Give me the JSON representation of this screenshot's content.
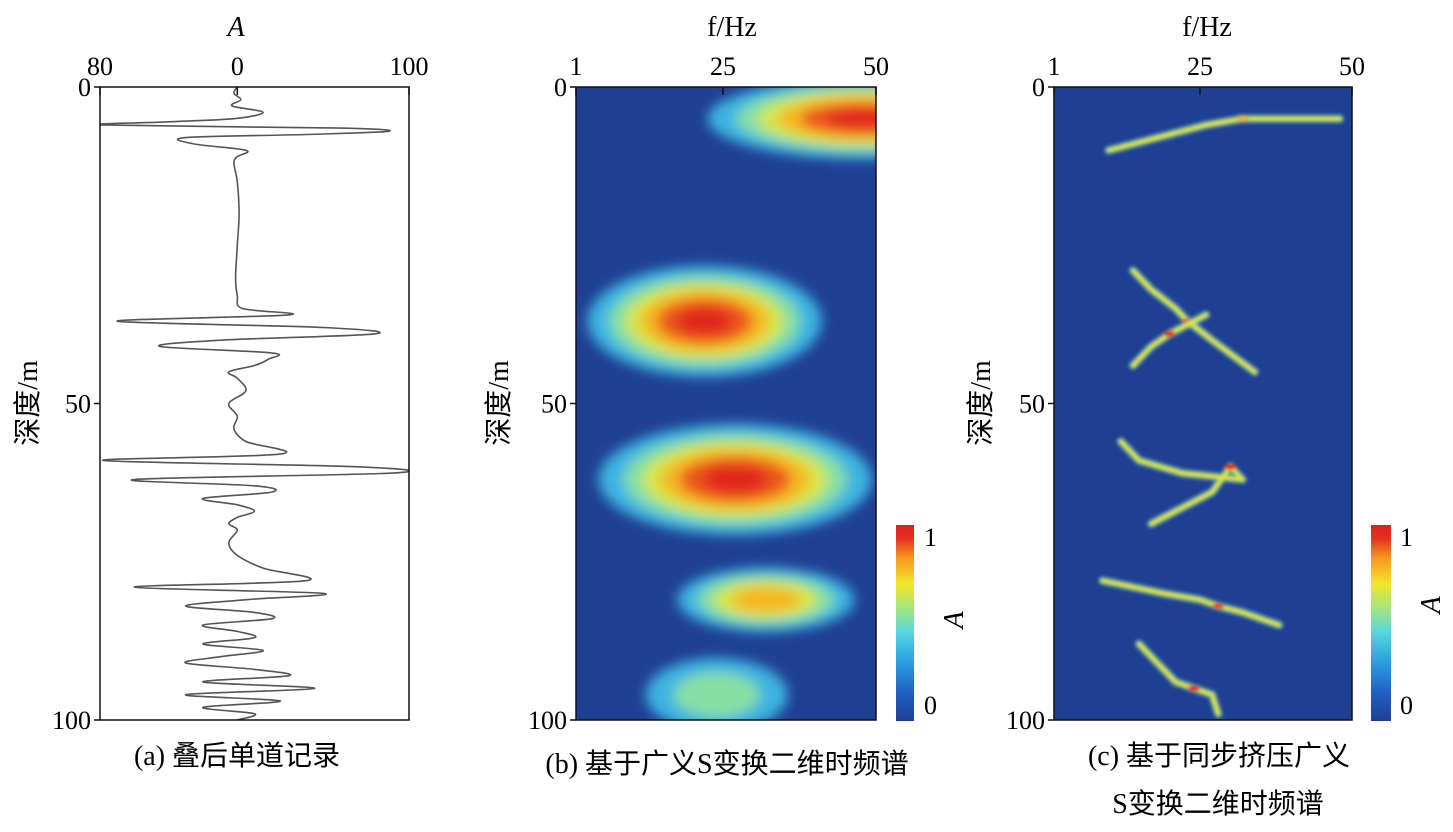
{
  "colors": {
    "axis": "#111111",
    "trace": "#555555",
    "colormap": [
      "#1f3f93",
      "#1f5fc0",
      "#2a9ee0",
      "#56d6e2",
      "#a6e67a",
      "#f2e62a",
      "#f79a1b",
      "#e23220",
      "#e11f1f"
    ]
  },
  "chart_data": [
    {
      "id": "a",
      "type": "line",
      "caption": "(a) 叠后单道记录",
      "xlabel": "A",
      "ylabel": "深度/m",
      "xlim": [
        -80,
        100
      ],
      "ylim": [
        0,
        100
      ],
      "y_inverted": true,
      "x_ticks": [
        {
          "value": -80,
          "label": "80"
        },
        {
          "value": 0,
          "label": "0"
        },
        {
          "value": 100,
          "label": "100"
        }
      ],
      "y_ticks": [
        {
          "value": 0,
          "label": "0"
        },
        {
          "value": 50,
          "label": "50"
        },
        {
          "value": 100,
          "label": "100"
        }
      ],
      "series": [
        {
          "depth": [
            0,
            1,
            2,
            3,
            4,
            5,
            5.5,
            6,
            6.5,
            7,
            7.5,
            8,
            9,
            10,
            11,
            12,
            15,
            20,
            25,
            30,
            33,
            35,
            36,
            37,
            38,
            39,
            40,
            41,
            42,
            43,
            44,
            45,
            46,
            48,
            50,
            52,
            54,
            56,
            58,
            59,
            60,
            61,
            62,
            63,
            64,
            65,
            66,
            67,
            68,
            69,
            70,
            72,
            74,
            76,
            78,
            79,
            80,
            81,
            82,
            83,
            84,
            85,
            86,
            87,
            88,
            89,
            90,
            91,
            92,
            93,
            94,
            95,
            96,
            97,
            98,
            99,
            100
          ],
          "amplitude": [
            0,
            -2,
            2,
            -3,
            15,
            -2,
            -40,
            -78,
            60,
            88,
            40,
            -30,
            -25,
            5,
            0,
            -2,
            0,
            1,
            0,
            -1,
            0,
            3,
            30,
            -70,
            50,
            80,
            -10,
            -45,
            20,
            18,
            10,
            -5,
            0,
            5,
            -5,
            0,
            -2,
            5,
            25,
            -78,
            70,
            90,
            -60,
            10,
            20,
            -20,
            0,
            10,
            0,
            -5,
            0,
            -5,
            0,
            15,
            40,
            -60,
            50,
            5,
            -30,
            10,
            20,
            -20,
            0,
            10,
            -20,
            15,
            -10,
            -30,
            10,
            30,
            -20,
            45,
            -30,
            25,
            -20,
            10,
            0
          ]
        }
      ]
    },
    {
      "id": "b",
      "type": "heatmap",
      "caption": "(b) 基于广义S变换二维时频谱",
      "xlabel": "f/Hz",
      "ylabel": "深度/m",
      "xlim": [
        1,
        50
      ],
      "ylim": [
        0,
        100
      ],
      "y_inverted": true,
      "x_ticks": [
        {
          "value": 1,
          "label": "1"
        },
        {
          "value": 25,
          "label": "25"
        },
        {
          "value": 50,
          "label": "50"
        }
      ],
      "y_ticks": [
        {
          "value": 0,
          "label": "0"
        },
        {
          "value": 50,
          "label": "50"
        },
        {
          "value": 100,
          "label": "100"
        }
      ],
      "colorbar": {
        "label": "A",
        "range": [
          0,
          1
        ],
        "tick_labels": [
          "0",
          "1"
        ]
      },
      "blobs": [
        {
          "depth": 5,
          "freq": 48,
          "amp": 1.0,
          "sd": 4,
          "sf": 16
        },
        {
          "depth": 37,
          "freq": 22,
          "amp": 1.0,
          "sd": 5.5,
          "sf": 12
        },
        {
          "depth": 62,
          "freq": 27,
          "amp": 1.0,
          "sd": 5.5,
          "sf": 14
        },
        {
          "depth": 81,
          "freq": 32,
          "amp": 0.8,
          "sd": 3.5,
          "sf": 10
        },
        {
          "depth": 96,
          "freq": 24,
          "amp": 0.55,
          "sd": 5,
          "sf": 10
        }
      ]
    },
    {
      "id": "c",
      "type": "heatmap",
      "caption": "(c) 基于同步挤压广义S变换二维时频谱",
      "caption_lines": [
        "(c) 基于同步挤压广义",
        "S变换二维时频谱"
      ],
      "xlabel": "f/Hz",
      "ylabel": "深度/m",
      "xlim": [
        1,
        50
      ],
      "ylim": [
        0,
        100
      ],
      "y_inverted": true,
      "x_ticks": [
        {
          "value": 1,
          "label": "1"
        },
        {
          "value": 25,
          "label": "25"
        },
        {
          "value": 50,
          "label": "50"
        }
      ],
      "y_ticks": [
        {
          "value": 0,
          "label": "0"
        },
        {
          "value": 50,
          "label": "50"
        },
        {
          "value": 100,
          "label": "100"
        }
      ],
      "colorbar": {
        "label": "A",
        "range": [
          0,
          1
        ],
        "tick_labels": [
          "0",
          "1"
        ]
      },
      "ridges": [
        {
          "points": [
            [
              10,
              10
            ],
            [
              8,
              18
            ],
            [
              6,
              26
            ],
            [
              5,
              32
            ],
            [
              5,
              40
            ],
            [
              5,
              48
            ]
          ],
          "amp": 0.7
        },
        {
          "points": [
            [
              29,
              14
            ],
            [
              32,
              17
            ],
            [
              35,
              21
            ],
            [
              37,
              23
            ],
            [
              40,
              27
            ],
            [
              45,
              34
            ]
          ],
          "amp": 1.0
        },
        {
          "points": [
            [
              44,
              14
            ],
            [
              41,
              17
            ],
            [
              39,
              20
            ],
            [
              37,
              24
            ],
            [
              36,
              26
            ]
          ],
          "amp": 0.9
        },
        {
          "points": [
            [
              56,
              12
            ],
            [
              59,
              15
            ],
            [
              61,
              22
            ],
            [
              62,
              32
            ],
            [
              60,
              30
            ],
            [
              64,
              27
            ],
            [
              67,
              21
            ],
            [
              69,
              17
            ]
          ],
          "amp": 1.0
        },
        {
          "points": [
            [
              78,
              9
            ],
            [
              80,
              19
            ],
            [
              81,
              25
            ],
            [
              82,
              28
            ],
            [
              83,
              32
            ],
            [
              85,
              38
            ]
          ],
          "amp": 0.85
        },
        {
          "points": [
            [
              88,
              15
            ],
            [
              91,
              18
            ],
            [
              94,
              21
            ],
            [
              95,
              24
            ],
            [
              96,
              27
            ],
            [
              99,
              28
            ]
          ],
          "amp": 0.9
        }
      ]
    }
  ]
}
